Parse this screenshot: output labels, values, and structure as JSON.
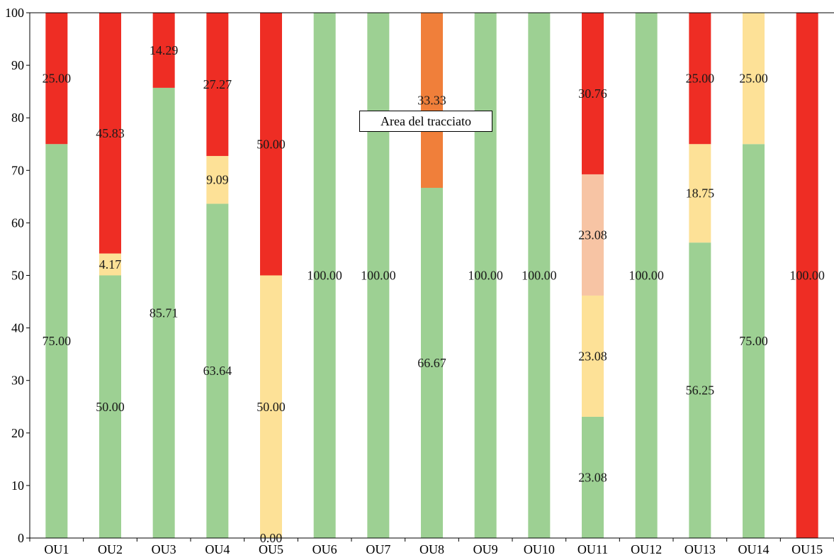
{
  "chart_data": {
    "type": "bar",
    "stacked": true,
    "categories": [
      "OU1",
      "OU2",
      "OU3",
      "OU4",
      "OU5",
      "OU6",
      "OU7",
      "OU8",
      "OU9",
      "OU10",
      "OU11",
      "OU12",
      "OU13",
      "OU14",
      "OU15"
    ],
    "ylim": [
      0,
      100
    ],
    "yticks": [
      0,
      10,
      20,
      30,
      40,
      50,
      60,
      70,
      80,
      90,
      100
    ],
    "grid": false,
    "legend": "none",
    "tooltip": "Area del tracciato",
    "colors": {
      "green": "#9dd093",
      "yellow": "#fde197",
      "peach": "#f7c4a4",
      "orange": "#f07f3a",
      "red": "#ee2d24"
    },
    "series": [
      {
        "color": "green",
        "values": [
          75.0,
          50.0,
          85.71,
          63.64,
          0.0,
          100.0,
          100.0,
          66.67,
          100.0,
          100.0,
          23.08,
          100.0,
          56.25,
          75.0,
          0
        ]
      },
      {
        "color": "yellow",
        "values": [
          0,
          4.17,
          0,
          9.09,
          50.0,
          0,
          0,
          0,
          0,
          0,
          23.08,
          0,
          18.75,
          25.0,
          0
        ]
      },
      {
        "color": "peach",
        "values": [
          0,
          0,
          0,
          0,
          0,
          0,
          0,
          0,
          0,
          0,
          23.08,
          0,
          0,
          0,
          0
        ]
      },
      {
        "color": "orange",
        "values": [
          0,
          0,
          0,
          0,
          0,
          0,
          0,
          33.33,
          0,
          0,
          0,
          0,
          0,
          0,
          0
        ]
      },
      {
        "color": "red",
        "values": [
          25.0,
          45.83,
          14.29,
          27.27,
          50.0,
          0,
          0,
          0,
          0,
          0,
          30.76,
          0,
          25.0,
          0,
          100.0
        ]
      }
    ],
    "data_labels": [
      {
        "category": "OU1",
        "value": 75.0,
        "text": "75.00"
      },
      {
        "category": "OU1",
        "value": 25.0,
        "text": "25.00",
        "base": 75.0
      },
      {
        "category": "OU2",
        "value": 50.0,
        "text": "50.00"
      },
      {
        "category": "OU2",
        "value": 4.17,
        "text": "4.17",
        "base": 50.0
      },
      {
        "category": "OU2",
        "value": 45.83,
        "text": "45.83",
        "base": 54.17
      },
      {
        "category": "OU3",
        "value": 85.71,
        "text": "85.71"
      },
      {
        "category": "OU3",
        "value": 14.29,
        "text": "14.29",
        "base": 85.71
      },
      {
        "category": "OU4",
        "value": 63.64,
        "text": "63.64"
      },
      {
        "category": "OU4",
        "value": 9.09,
        "text": "9.09",
        "base": 63.64
      },
      {
        "category": "OU4",
        "value": 27.27,
        "text": "27.27",
        "base": 72.73
      },
      {
        "category": "OU5",
        "value": 0.0,
        "text": "0.00"
      },
      {
        "category": "OU5",
        "value": 50.0,
        "text": "50.00",
        "base": 0
      },
      {
        "category": "OU5",
        "value": 50.0,
        "text": "50.00",
        "base": 50.0
      },
      {
        "category": "OU6",
        "value": 100.0,
        "text": "100.00"
      },
      {
        "category": "OU7",
        "value": 100.0,
        "text": "100.00"
      },
      {
        "category": "OU8",
        "value": 66.67,
        "text": "66.67"
      },
      {
        "category": "OU8",
        "value": 33.33,
        "text": "33.33",
        "base": 66.67
      },
      {
        "category": "OU9",
        "value": 100.0,
        "text": "100.00"
      },
      {
        "category": "OU10",
        "value": 100.0,
        "text": "100.00"
      },
      {
        "category": "OU11",
        "value": 23.08,
        "text": "23.08"
      },
      {
        "category": "OU11",
        "value": 23.08,
        "text": "23.08",
        "base": 23.08
      },
      {
        "category": "OU11",
        "value": 23.08,
        "text": "23.08",
        "base": 46.16
      },
      {
        "category": "OU11",
        "value": 30.76,
        "text": "30.76",
        "base": 69.24
      },
      {
        "category": "OU12",
        "value": 100.0,
        "text": "100.00"
      },
      {
        "category": "OU13",
        "value": 56.25,
        "text": "56.25"
      },
      {
        "category": "OU13",
        "value": 18.75,
        "text": "18.75",
        "base": 56.25
      },
      {
        "category": "OU13",
        "value": 25.0,
        "text": "25.00",
        "base": 75.0
      },
      {
        "category": "OU14",
        "value": 75.0,
        "text": "75.00"
      },
      {
        "category": "OU14",
        "value": 25.0,
        "text": "25.00",
        "base": 75.0
      },
      {
        "category": "OU15",
        "value": 100.0,
        "text": "100.00"
      }
    ]
  }
}
